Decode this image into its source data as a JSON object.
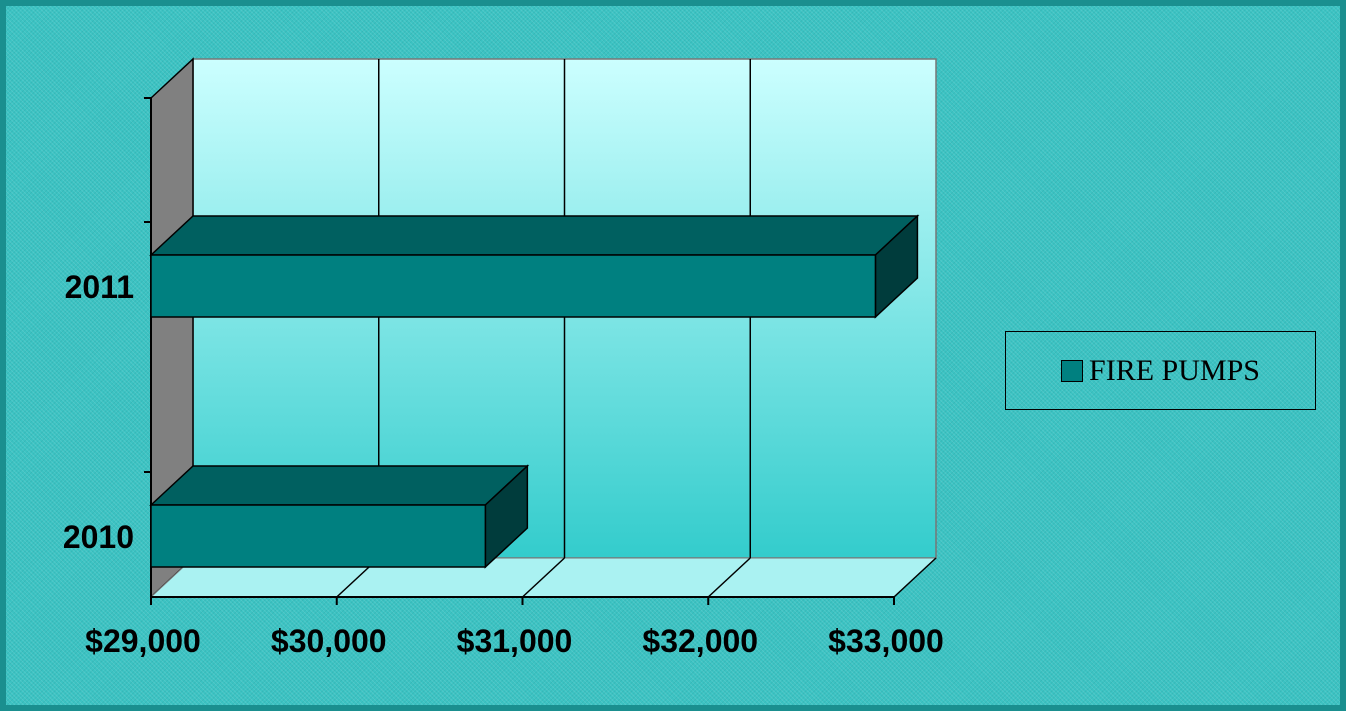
{
  "chart_data": {
    "type": "bar",
    "orientation": "horizontal",
    "style": "3d",
    "title": "",
    "xlabel": "",
    "ylabel": "",
    "categories": [
      "2010",
      "2011"
    ],
    "series": [
      {
        "name": "FIRE PUMPS",
        "values": [
          30800,
          32900
        ],
        "color": "#008080"
      }
    ],
    "xlim": [
      29000,
      33000
    ],
    "xticks": [
      29000,
      30000,
      31000,
      32000,
      33000
    ],
    "xtick_labels": [
      "$29,000",
      "$30,000",
      "$31,000",
      "$32,000",
      "$33,000"
    ],
    "grid": true,
    "legend_position": "right"
  },
  "colors": {
    "background": "#3cc3c3",
    "plot_top": "#ccffff",
    "plot_bottom": "#33cccc",
    "bar_front": "#008080",
    "bar_top": "#006060",
    "bar_side": "#003c3c",
    "side_wall": "#808080",
    "floor": "#aaf2f2"
  }
}
